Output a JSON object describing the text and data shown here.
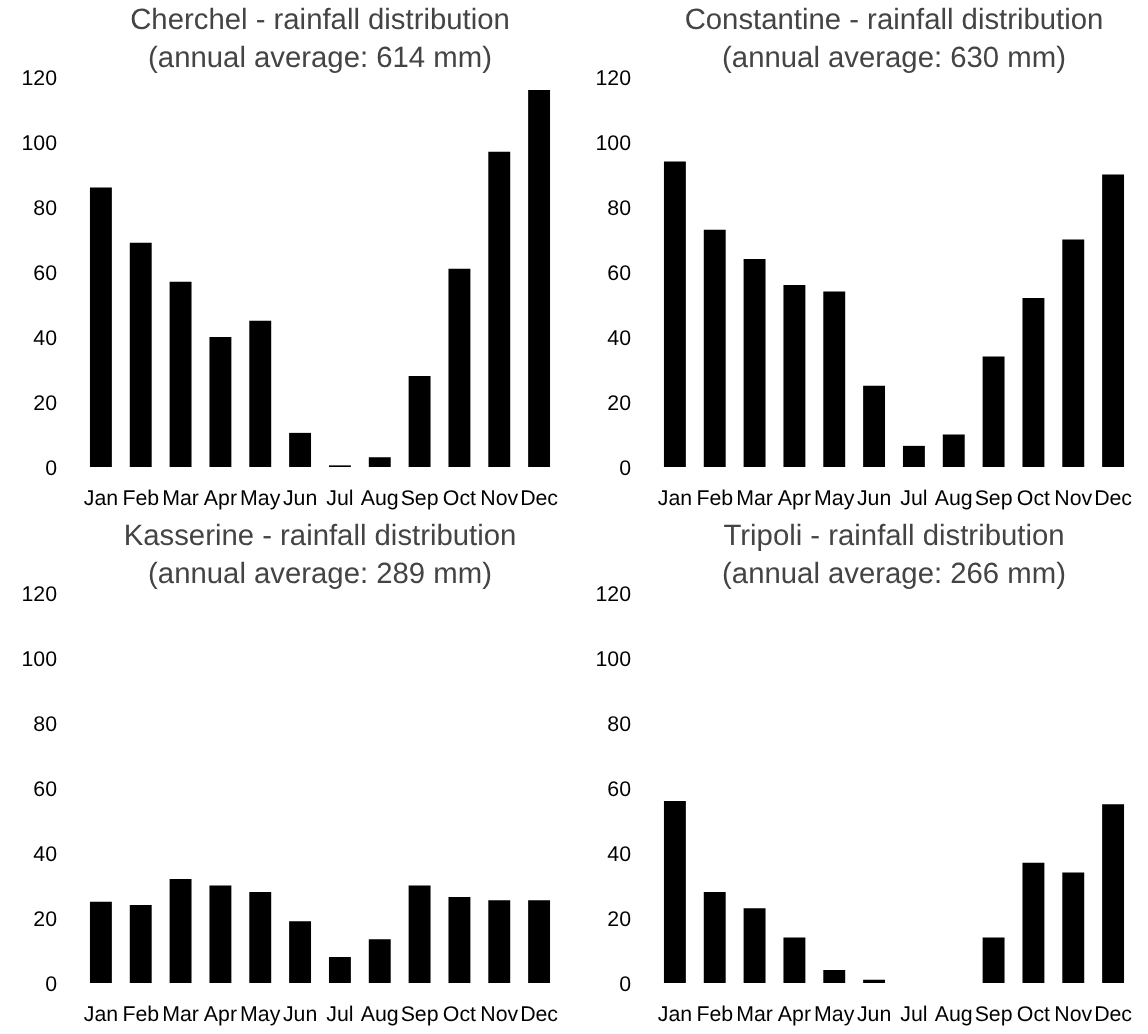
{
  "chart_data": [
    {
      "type": "bar",
      "title": "Cherchel - rainfall distribution",
      "subtitle": "(annual average: 614 mm)",
      "categories": [
        "Jan",
        "Feb",
        "Mar",
        "Apr",
        "May",
        "Jun",
        "Jul",
        "Aug",
        "Sep",
        "Oct",
        "Nov",
        "Dec"
      ],
      "values": [
        86,
        69,
        57,
        40,
        45,
        10.5,
        0.5,
        3,
        28,
        61,
        97,
        116
      ],
      "color": "#000000",
      "ylim": [
        0,
        120
      ],
      "yticks": [
        0,
        20,
        40,
        60,
        80,
        100,
        120
      ],
      "grid": false
    },
    {
      "type": "bar",
      "title": "Constantine - rainfall distribution",
      "subtitle": "(annual average: 630 mm)",
      "categories": [
        "Jan",
        "Feb",
        "Mar",
        "Apr",
        "May",
        "Jun",
        "Jul",
        "Aug",
        "Sep",
        "Oct",
        "Nov",
        "Dec"
      ],
      "values": [
        94,
        73,
        64,
        56,
        54,
        25,
        6.5,
        10,
        34,
        52,
        70,
        90
      ],
      "color": "#000000",
      "ylim": [
        0,
        120
      ],
      "yticks": [
        0,
        20,
        40,
        60,
        80,
        100,
        120
      ],
      "grid": false
    },
    {
      "type": "bar",
      "title": "Kasserine - rainfall distribution",
      "subtitle": "(annual average: 289 mm)",
      "categories": [
        "Jan",
        "Feb",
        "Mar",
        "Apr",
        "May",
        "Jun",
        "Jul",
        "Aug",
        "Sep",
        "Oct",
        "Nov",
        "Dec"
      ],
      "values": [
        25,
        24,
        32,
        30,
        28,
        19,
        8,
        13.5,
        30,
        26.5,
        25.5,
        25.5
      ],
      "color": "#000000",
      "ylim": [
        0,
        120
      ],
      "yticks": [
        0,
        20,
        40,
        60,
        80,
        100,
        120
      ],
      "grid": false
    },
    {
      "type": "bar",
      "title": "Tripoli - rainfall distribution",
      "subtitle": "(annual average: 266 mm)",
      "categories": [
        "Jan",
        "Feb",
        "Mar",
        "Apr",
        "May",
        "Jun",
        "Jul",
        "Aug",
        "Sep",
        "Oct",
        "Nov",
        "Dec"
      ],
      "values": [
        56,
        28,
        23,
        14,
        4,
        1,
        0,
        0,
        14,
        37,
        34,
        55
      ],
      "color": "#000000",
      "ylim": [
        0,
        120
      ],
      "yticks": [
        0,
        20,
        40,
        60,
        80,
        100,
        120
      ],
      "grid": false
    }
  ]
}
